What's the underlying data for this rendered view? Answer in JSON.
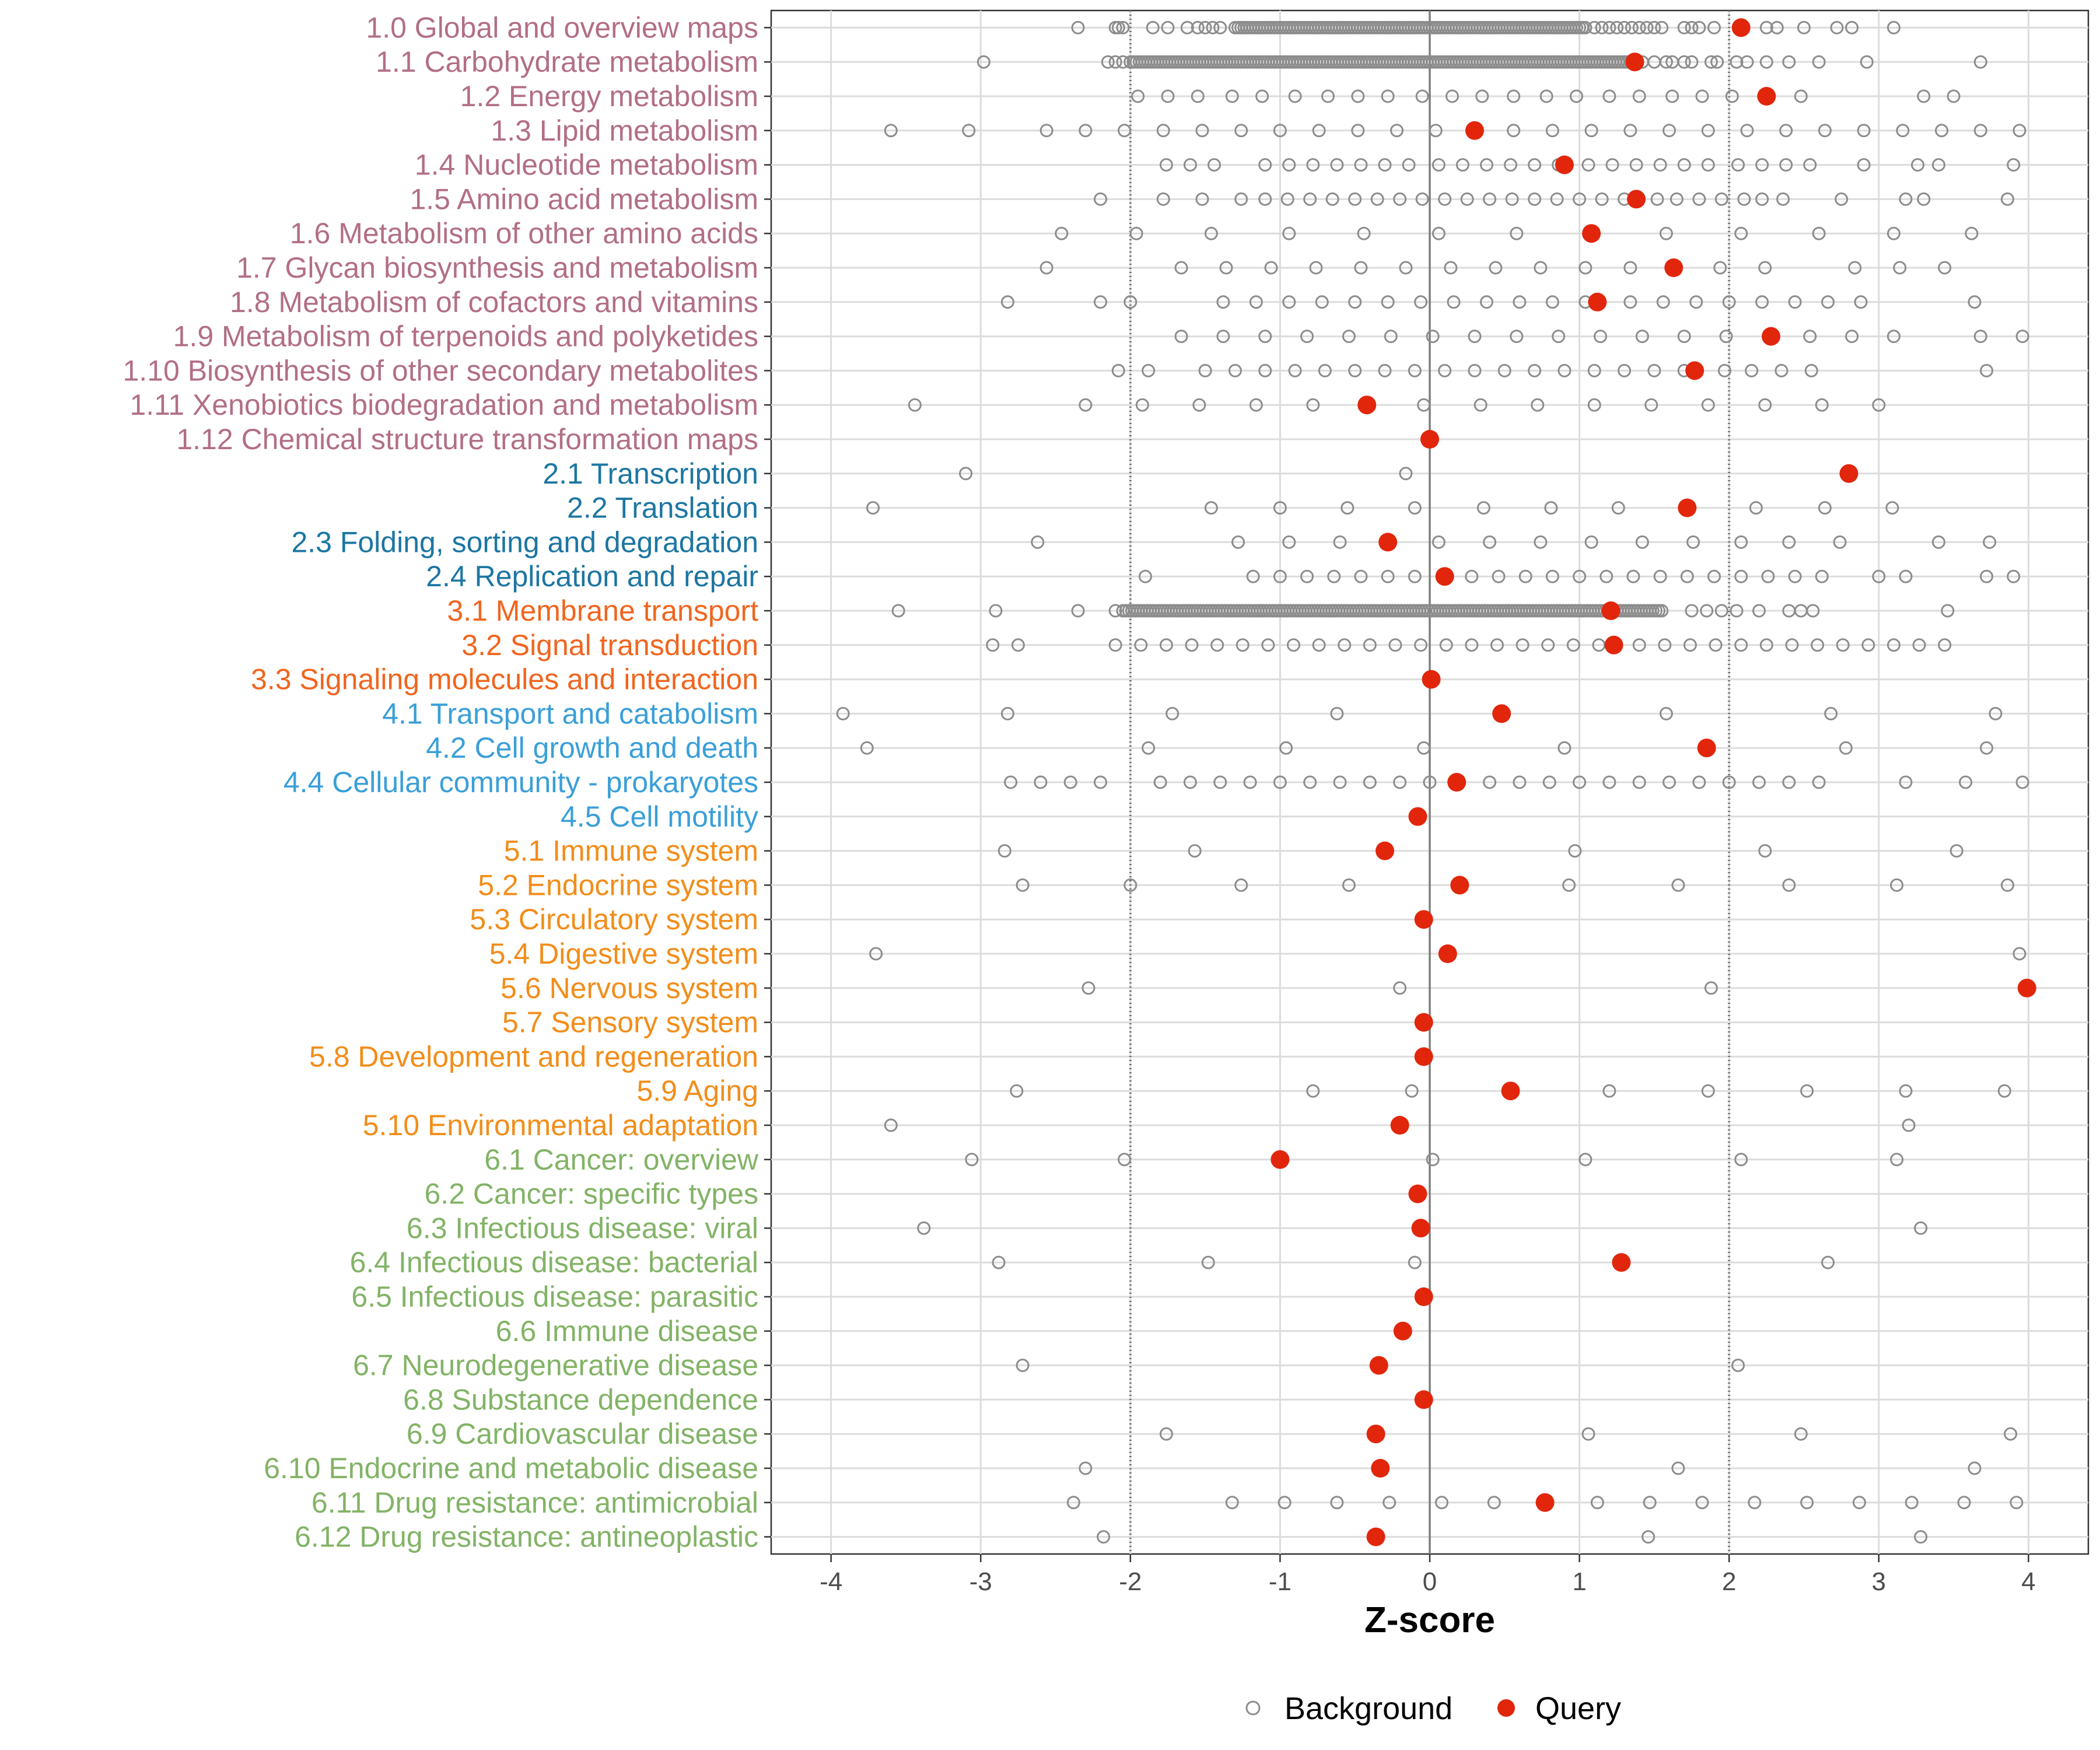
{
  "chart_data": {
    "type": "scatter",
    "title": "",
    "xlabel": "Z-score",
    "ylabel": "",
    "xlim": [
      -4.4,
      4.4
    ],
    "x_ticks": [
      -4,
      -3,
      -2,
      -1,
      0,
      1,
      2,
      3,
      4
    ],
    "x_tick_labels": [
      "-4",
      "-3",
      "-2",
      "-1",
      "0",
      "1",
      "2",
      "3",
      "4"
    ],
    "reference_lines": [
      {
        "x": -2,
        "style": "dotted"
      },
      {
        "x": 0,
        "style": "solid"
      },
      {
        "x": 2,
        "style": "dotted"
      }
    ],
    "legend": {
      "position": "bottom",
      "items": [
        {
          "name": "Background",
          "marker": "open-circle",
          "color": "#8c8c8c"
        },
        {
          "name": "Query",
          "marker": "filled-circle",
          "color": "#e1260c"
        }
      ]
    },
    "group_colors": {
      "1": "#b26f84",
      "2": "#1c76a2",
      "3": "#f0651f",
      "4": "#3a9fd8",
      "5": "#f28d1a",
      "6": "#82b366"
    },
    "categories": [
      {
        "label": "1.0 Global and overview maps",
        "group": "1",
        "query": 2.08,
        "bg_dense": [
          -1.3,
          1.05
        ],
        "background": [
          -2.35,
          -2.1,
          -2.08,
          -2.05,
          -1.85,
          -1.75,
          -1.62,
          -1.55,
          -1.5,
          -1.45,
          -1.4,
          1.1,
          1.15,
          1.2,
          1.25,
          1.3,
          1.35,
          1.4,
          1.45,
          1.5,
          1.55,
          1.7,
          1.75,
          1.8,
          1.9,
          2.25,
          2.32,
          2.5,
          2.72,
          2.82,
          3.1
        ]
      },
      {
        "label": "1.1 Carbohydrate metabolism",
        "group": "1",
        "query": 1.37,
        "bg_dense": [
          -2.0,
          1.35
        ],
        "background": [
          -2.98,
          -2.15,
          -2.1,
          -2.05,
          1.42,
          1.5,
          1.58,
          1.62,
          1.7,
          1.75,
          1.88,
          1.92,
          2.05,
          2.12,
          2.25,
          2.4,
          2.6,
          2.92,
          3.68
        ]
      },
      {
        "label": "1.2 Energy metabolism",
        "group": "1",
        "query": 2.25,
        "background": [
          -1.95,
          -1.75,
          -1.55,
          -1.32,
          -1.12,
          -0.9,
          -0.68,
          -0.48,
          -0.28,
          -0.05,
          0.15,
          0.35,
          0.56,
          0.78,
          0.98,
          1.2,
          1.4,
          1.62,
          1.82,
          2.02,
          2.48,
          3.3,
          3.5
        ]
      },
      {
        "label": "1.3 Lipid metabolism",
        "group": "1",
        "query": 0.3,
        "background": [
          -3.6,
          -3.08,
          -2.56,
          -2.3,
          -2.04,
          -1.78,
          -1.52,
          -1.26,
          -1.0,
          -0.74,
          -0.48,
          -0.22,
          0.04,
          0.56,
          0.82,
          1.08,
          1.34,
          1.6,
          1.86,
          2.12,
          2.38,
          2.64,
          2.9,
          3.16,
          3.42,
          3.68,
          3.94
        ]
      },
      {
        "label": "1.4 Nucleotide metabolism",
        "group": "1",
        "query": 0.9,
        "background": [
          -1.76,
          -1.6,
          -1.44,
          -1.1,
          -0.94,
          -0.78,
          -0.62,
          -0.46,
          -0.3,
          -0.14,
          0.06,
          0.22,
          0.38,
          0.54,
          0.7,
          0.86,
          1.06,
          1.22,
          1.38,
          1.54,
          1.7,
          1.86,
          2.06,
          2.22,
          2.38,
          2.54,
          2.9,
          3.26,
          3.4,
          3.9
        ]
      },
      {
        "label": "1.5 Amino acid metabolism",
        "group": "1",
        "query": 1.38,
        "background": [
          -2.2,
          -1.78,
          -1.52,
          -1.26,
          -1.1,
          -0.95,
          -0.8,
          -0.65,
          -0.5,
          -0.35,
          -0.2,
          -0.05,
          0.1,
          0.25,
          0.4,
          0.55,
          0.7,
          0.85,
          1.0,
          1.15,
          1.3,
          1.52,
          1.65,
          1.8,
          1.95,
          2.1,
          2.22,
          2.36,
          2.75,
          3.18,
          3.3,
          3.86
        ]
      },
      {
        "label": "1.6 Metabolism of other amino acids",
        "group": "1",
        "query": 1.08,
        "background": [
          -2.46,
          -1.96,
          -1.46,
          -0.94,
          -0.44,
          0.06,
          0.58,
          1.58,
          2.08,
          2.6,
          3.1,
          3.62
        ]
      },
      {
        "label": "1.7 Glycan biosynthesis and metabolism",
        "group": "1",
        "query": 1.63,
        "background": [
          -2.56,
          -1.66,
          -1.36,
          -1.06,
          -0.76,
          -0.46,
          -0.16,
          0.14,
          0.44,
          0.74,
          1.04,
          1.34,
          1.94,
          2.24,
          2.84,
          3.14,
          3.44
        ]
      },
      {
        "label": "1.8 Metabolism of cofactors and vitamins",
        "group": "1",
        "query": 1.12,
        "background": [
          -2.82,
          -2.2,
          -2.0,
          -1.38,
          -1.16,
          -0.94,
          -0.72,
          -0.5,
          -0.28,
          -0.06,
          0.16,
          0.38,
          0.6,
          0.82,
          1.04,
          1.34,
          1.56,
          1.78,
          2.0,
          2.22,
          2.44,
          2.66,
          2.88,
          3.64
        ]
      },
      {
        "label": "1.9 Metabolism of terpenoids and polyketides",
        "group": "1",
        "query": 2.28,
        "background": [
          -1.66,
          -1.38,
          -1.1,
          -0.82,
          -0.54,
          -0.26,
          0.02,
          0.3,
          0.58,
          0.86,
          1.14,
          1.42,
          1.7,
          1.98,
          2.54,
          2.82,
          3.1,
          3.68,
          3.96
        ]
      },
      {
        "label": "1.10 Biosynthesis of other secondary metabolites",
        "group": "1",
        "query": 1.77,
        "background": [
          -2.08,
          -1.88,
          -1.5,
          -1.3,
          -1.1,
          -0.9,
          -0.7,
          -0.5,
          -0.3,
          -0.1,
          0.1,
          0.3,
          0.5,
          0.7,
          0.9,
          1.1,
          1.3,
          1.5,
          1.7,
          1.97,
          2.15,
          2.35,
          2.55,
          3.72
        ]
      },
      {
        "label": "1.11 Xenobiotics biodegradation and metabolism",
        "group": "1",
        "query": -0.42,
        "background": [
          -3.44,
          -2.3,
          -1.92,
          -1.54,
          -1.16,
          -0.78,
          -0.04,
          0.34,
          0.72,
          1.1,
          1.48,
          1.86,
          2.24,
          2.62,
          3.0
        ]
      },
      {
        "label": "1.12 Chemical structure transformation maps",
        "group": "1",
        "query": 0.0,
        "background": []
      },
      {
        "label": "2.1 Transcription",
        "group": "2",
        "query": 2.8,
        "background": [
          -3.1,
          -0.16
        ]
      },
      {
        "label": "2.2 Translation",
        "group": "2",
        "query": 1.72,
        "background": [
          -3.72,
          -1.46,
          -1.0,
          -0.55,
          -0.1,
          0.36,
          0.81,
          1.26,
          2.18,
          2.64,
          3.09
        ]
      },
      {
        "label": "2.3 Folding, sorting and degradation",
        "group": "2",
        "query": -0.28,
        "background": [
          -2.62,
          -1.28,
          -0.94,
          -0.6,
          0.06,
          0.4,
          0.74,
          1.08,
          1.42,
          1.76,
          2.08,
          2.4,
          2.74,
          3.4,
          3.74
        ]
      },
      {
        "label": "2.4 Replication and repair",
        "group": "2",
        "query": 0.1,
        "background": [
          -1.9,
          -1.18,
          -1.0,
          -0.82,
          -0.64,
          -0.46,
          -0.28,
          -0.1,
          0.28,
          0.46,
          0.64,
          0.82,
          1.0,
          1.18,
          1.36,
          1.54,
          1.72,
          1.9,
          2.08,
          2.26,
          2.44,
          2.62,
          3.0,
          3.18,
          3.72,
          3.9
        ]
      },
      {
        "label": "3.1 Membrane transport",
        "group": "3",
        "query": 1.21,
        "bg_dense": [
          -2.05,
          1.55
        ],
        "background": [
          -3.55,
          -2.9,
          -2.35,
          -2.1,
          1.75,
          1.85,
          1.95,
          2.05,
          2.2,
          2.4,
          2.48,
          2.56,
          3.46
        ]
      },
      {
        "label": "3.2 Signal transduction",
        "group": "3",
        "query": 1.23,
        "background": [
          -2.92,
          -2.75,
          -2.1,
          -1.93,
          -1.76,
          -1.59,
          -1.42,
          -1.25,
          -1.08,
          -0.91,
          -0.74,
          -0.57,
          -0.4,
          -0.23,
          -0.06,
          0.11,
          0.28,
          0.45,
          0.62,
          0.79,
          0.96,
          1.13,
          1.4,
          1.57,
          1.74,
          1.91,
          2.08,
          2.25,
          2.42,
          2.59,
          2.76,
          2.93,
          3.1,
          3.27,
          3.44
        ]
      },
      {
        "label": "3.3 Signaling molecules and interaction",
        "group": "3",
        "query": 0.01,
        "background": []
      },
      {
        "label": "4.1 Transport and catabolism",
        "group": "4",
        "query": 0.48,
        "background": [
          -3.92,
          -2.82,
          -1.72,
          -0.62,
          1.58,
          2.68,
          3.78
        ]
      },
      {
        "label": "4.2 Cell growth and death",
        "group": "4",
        "query": 1.85,
        "background": [
          -3.76,
          -1.88,
          -0.96,
          -0.04,
          0.9,
          2.78,
          3.72
        ]
      },
      {
        "label": "4.4 Cellular community - prokaryotes",
        "group": "4",
        "query": 0.18,
        "background": [
          -2.8,
          -2.6,
          -2.4,
          -2.2,
          -1.8,
          -1.6,
          -1.4,
          -1.2,
          -1.0,
          -0.8,
          -0.6,
          -0.4,
          -0.2,
          0.0,
          0.4,
          0.6,
          0.8,
          1.0,
          1.2,
          1.4,
          1.6,
          1.8,
          2.0,
          2.2,
          2.4,
          2.6,
          3.18,
          3.58,
          3.96
        ]
      },
      {
        "label": "4.5 Cell motility",
        "group": "4",
        "query": -0.08,
        "background": []
      },
      {
        "label": "5.1 Immune system",
        "group": "5",
        "query": -0.3,
        "background": [
          -2.84,
          -1.57,
          0.97,
          2.24,
          3.52
        ]
      },
      {
        "label": "5.2 Endocrine system",
        "group": "5",
        "query": 0.2,
        "background": [
          -2.72,
          -2.0,
          -1.26,
          -0.54,
          0.93,
          1.66,
          2.4,
          3.12,
          3.86
        ]
      },
      {
        "label": "5.3 Circulatory system",
        "group": "5",
        "query": -0.04,
        "background": []
      },
      {
        "label": "5.4 Digestive system",
        "group": "5",
        "query": 0.12,
        "background": [
          -3.7,
          3.94
        ]
      },
      {
        "label": "5.6 Nervous system",
        "group": "5",
        "query": 3.99,
        "background": [
          -2.28,
          -0.2,
          1.88
        ]
      },
      {
        "label": "5.7 Sensory system",
        "group": "5",
        "query": -0.04,
        "background": []
      },
      {
        "label": "5.8 Development and regeneration",
        "group": "5",
        "query": -0.04,
        "background": []
      },
      {
        "label": "5.9 Aging",
        "group": "5",
        "query": 0.54,
        "background": [
          -2.76,
          -0.78,
          -0.12,
          1.2,
          1.86,
          2.52,
          3.18,
          3.84
        ]
      },
      {
        "label": "5.10 Environmental adaptation",
        "group": "5",
        "query": -0.2,
        "background": [
          -3.6,
          3.2
        ]
      },
      {
        "label": "6.1 Cancer: overview",
        "group": "6",
        "query": -1.0,
        "background": [
          -3.06,
          -2.04,
          0.02,
          1.04,
          2.08,
          3.12
        ]
      },
      {
        "label": "6.2 Cancer: specific types",
        "group": "6",
        "query": -0.08,
        "background": []
      },
      {
        "label": "6.3 Infectious disease: viral",
        "group": "6",
        "query": -0.06,
        "background": [
          -3.38,
          3.28
        ]
      },
      {
        "label": "6.4 Infectious disease: bacterial",
        "group": "6",
        "query": 1.28,
        "background": [
          -2.88,
          -1.48,
          -0.1,
          2.66
        ]
      },
      {
        "label": "6.5 Infectious disease: parasitic",
        "group": "6",
        "query": -0.04,
        "background": []
      },
      {
        "label": "6.6 Immune disease",
        "group": "6",
        "query": -0.18,
        "background": []
      },
      {
        "label": "6.7 Neurodegenerative disease",
        "group": "6",
        "query": -0.34,
        "background": [
          -2.72,
          2.06
        ]
      },
      {
        "label": "6.8 Substance dependence",
        "group": "6",
        "query": -0.04,
        "background": []
      },
      {
        "label": "6.9 Cardiovascular disease",
        "group": "6",
        "query": -0.36,
        "background": [
          -1.76,
          1.06,
          2.48,
          3.88
        ]
      },
      {
        "label": "6.10 Endocrine and metabolic disease",
        "group": "6",
        "query": -0.33,
        "background": [
          -2.3,
          1.66,
          3.64
        ]
      },
      {
        "label": "6.11 Drug resistance: antimicrobial",
        "group": "6",
        "query": 0.77,
        "background": [
          -2.38,
          -1.32,
          -0.97,
          -0.62,
          -0.27,
          0.08,
          0.43,
          1.12,
          1.47,
          1.82,
          2.17,
          2.52,
          2.87,
          3.22,
          3.57,
          3.92
        ]
      },
      {
        "label": "6.12 Drug resistance: antineoplastic",
        "group": "6",
        "query": -0.36,
        "background": [
          -2.18,
          1.46,
          3.28
        ]
      }
    ]
  }
}
